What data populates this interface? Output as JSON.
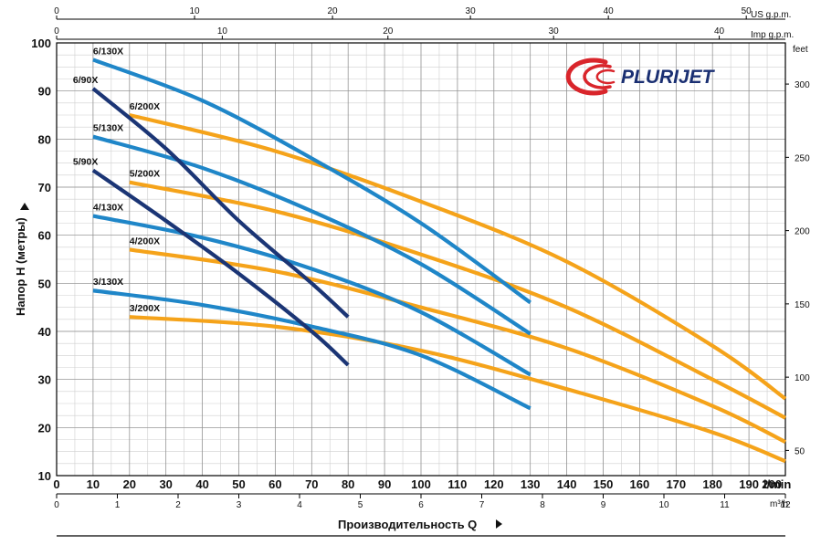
{
  "chart_data": {
    "type": "line",
    "xlabel": "Производительность Q",
    "ylabel": "Напор H (метры)",
    "brand": "PLURIJET",
    "x_unit": "l/min",
    "x_range": [
      0,
      200
    ],
    "ylim": [
      10,
      100
    ],
    "grid": true,
    "x_ticks": [
      "0",
      "10",
      "20",
      "30",
      "40",
      "50",
      "60",
      "70",
      "80",
      "90",
      "100",
      "110",
      "120",
      "130",
      "140",
      "150",
      "160",
      "170",
      "180",
      "190",
      "200"
    ],
    "y_ticks": [
      "10",
      "20",
      "30",
      "40",
      "50",
      "60",
      "70",
      "80",
      "90",
      "100"
    ],
    "secondary_axes": {
      "us_gpm": {
        "label": "US g.p.m.",
        "ticks": [
          "0",
          "10",
          "20",
          "30",
          "40",
          "50"
        ],
        "per_lmin": 0.264172
      },
      "imp_gpm": {
        "label": "Imp g.p.m.",
        "ticks": [
          "0",
          "10",
          "20",
          "30",
          "40"
        ],
        "per_lmin": 0.219969
      },
      "m3h": {
        "label": "m³/h",
        "ticks": [
          "0",
          "1",
          "2",
          "3",
          "4",
          "5",
          "6",
          "7",
          "8",
          "9",
          "10",
          "11",
          "12"
        ],
        "per_lmin": 0.06
      },
      "feet": {
        "label": "feet",
        "ticks": [
          "50",
          "100",
          "150",
          "200",
          "250",
          "300"
        ],
        "per_m": 3.28084
      }
    },
    "series": [
      {
        "name": "6/130X",
        "color": "#1f86c8",
        "x": [
          10,
          40,
          70,
          100,
          130
        ],
        "y": [
          96.5,
          88,
          76,
          62.5,
          46
        ]
      },
      {
        "name": "5/130X",
        "color": "#1f86c8",
        "x": [
          10,
          40,
          70,
          100,
          130
        ],
        "y": [
          80.5,
          74,
          65,
          54,
          39.5
        ]
      },
      {
        "name": "4/130X",
        "color": "#1f86c8",
        "x": [
          10,
          40,
          70,
          100,
          130
        ],
        "y": [
          64,
          59.5,
          53,
          44,
          31
        ]
      },
      {
        "name": "3/130X",
        "color": "#1f86c8",
        "x": [
          10,
          40,
          70,
          100,
          130
        ],
        "y": [
          48.5,
          45.5,
          41,
          35,
          24
        ]
      },
      {
        "name": "6/200X",
        "color": "#f5a31a",
        "x": [
          20,
          60,
          100,
          140,
          180,
          200
        ],
        "y": [
          85,
          77.5,
          67,
          54.5,
          37,
          26
        ]
      },
      {
        "name": "5/200X",
        "color": "#f5a31a",
        "x": [
          20,
          60,
          100,
          140,
          180,
          200
        ],
        "y": [
          71,
          65,
          56,
          45,
          30,
          22
        ]
      },
      {
        "name": "4/200X",
        "color": "#f5a31a",
        "x": [
          20,
          60,
          100,
          140,
          180,
          200
        ],
        "y": [
          57,
          52.5,
          45,
          36.5,
          24.5,
          17
        ]
      },
      {
        "name": "3/200X",
        "color": "#f5a31a",
        "x": [
          20,
          60,
          100,
          140,
          180,
          200
        ],
        "y": [
          43,
          41,
          36,
          28,
          19,
          13
        ]
      },
      {
        "name": "6/90X",
        "color": "#1b3575",
        "x": [
          10,
          30,
          50,
          70,
          80
        ],
        "y": [
          90.5,
          78,
          63,
          50,
          43
        ]
      },
      {
        "name": "5/90X",
        "color": "#1b3575",
        "x": [
          10,
          30,
          50,
          70,
          80
        ],
        "y": [
          73.5,
          63,
          52,
          40,
          33
        ]
      }
    ]
  }
}
